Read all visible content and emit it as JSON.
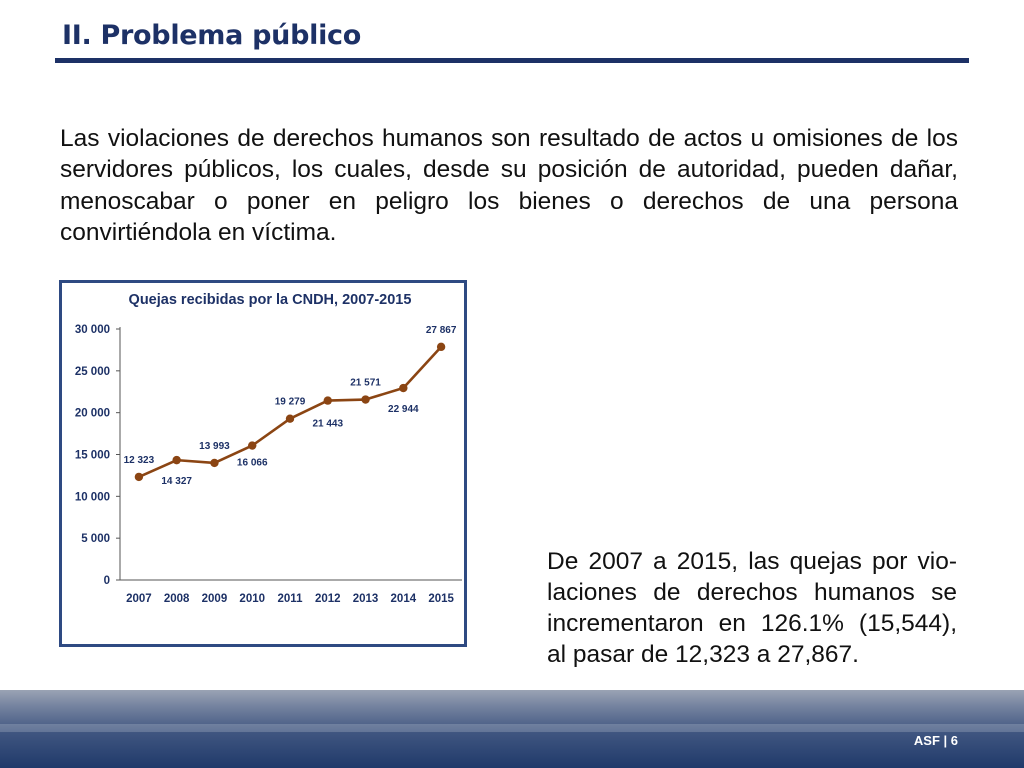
{
  "slide": {
    "title": "II. Problema público",
    "intro": "Las violaciones de derechos humanos son resultado de actos u omisiones de los servidores públicos, los cuales, desde su posición de autoridad, pueden dañar, menoscabar o poner en peligro los bienes o derechos de una persona convirtiéndola en víctima.",
    "summary": "De 2007 a 2015, las quejas por vio-laciones de derechos humanos se incrementaron en 126.1% (15,544), al pasar de 12,323 a 27,867.",
    "footer_label": "ASF | 6"
  },
  "colors": {
    "title": "#1d3166",
    "frame": "#2e4a82",
    "line": "#8b4513",
    "footer": "#203a6a"
  },
  "chart_data": {
    "type": "line",
    "title": "Quejas recibidas por la CNDH, 2007-2015",
    "xlabel": "",
    "ylabel": "",
    "categories": [
      "2007",
      "2008",
      "2009",
      "2010",
      "2011",
      "2012",
      "2013",
      "2014",
      "2015"
    ],
    "values": [
      12323,
      14327,
      13993,
      16066,
      19279,
      21443,
      21571,
      22944,
      27867
    ],
    "data_labels": [
      "12 323",
      "14 327",
      "13 993",
      "16 066",
      "19 279",
      "21 443",
      "21 571",
      "22 944",
      "27 867"
    ],
    "ylim": [
      0,
      30000
    ],
    "yticks": [
      0,
      5000,
      10000,
      15000,
      20000,
      25000,
      30000
    ],
    "ytick_labels": [
      "0",
      "5 000",
      "10 000",
      "15 000",
      "20 000",
      "25 000",
      "30 000"
    ],
    "grid": false,
    "legend": "none"
  }
}
